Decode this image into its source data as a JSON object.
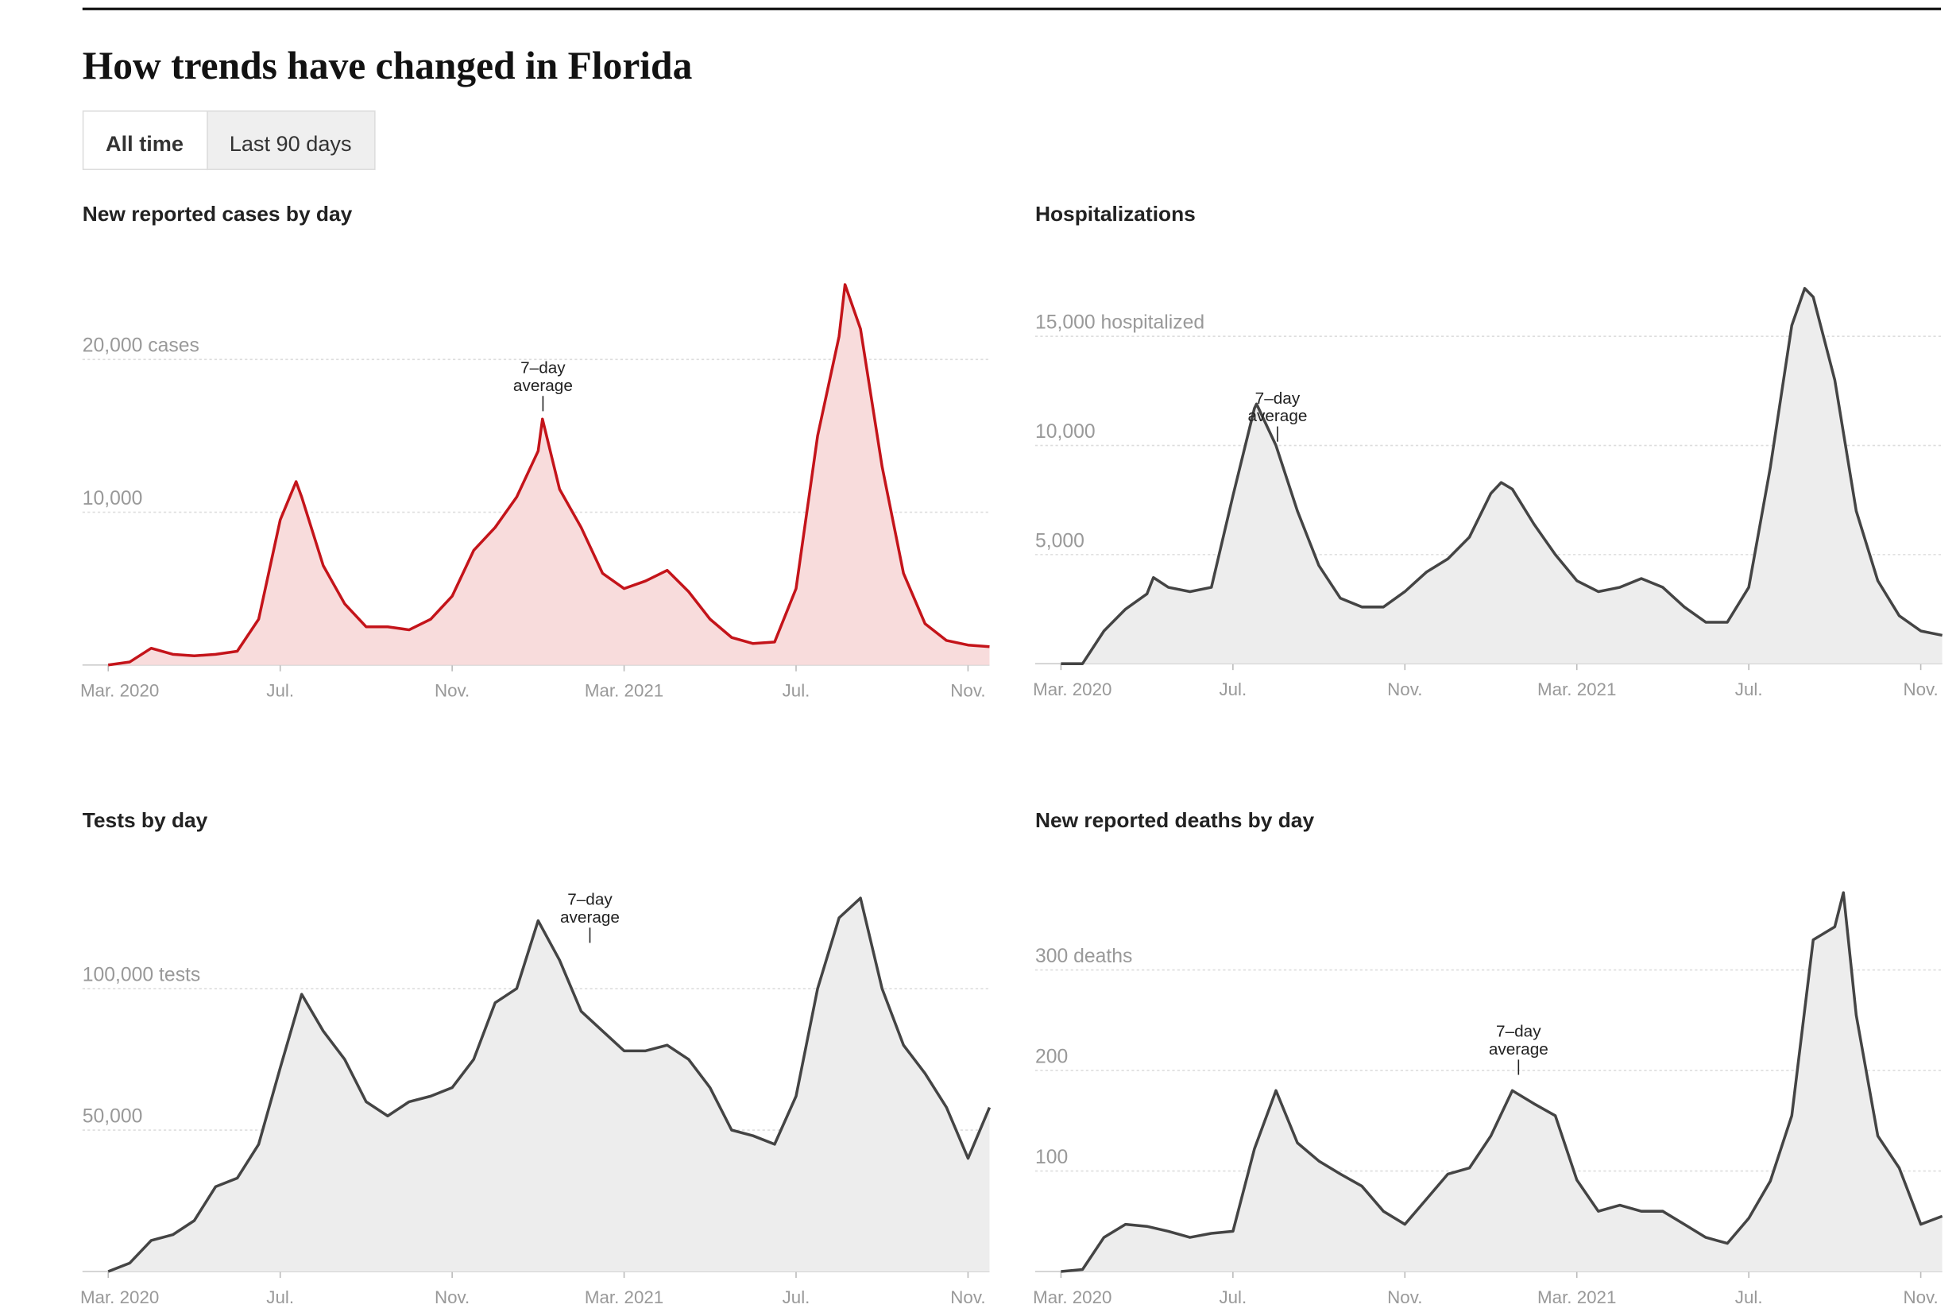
{
  "header": {
    "title": "How trends have changed in Florida",
    "tabs": [
      "All time",
      "Last 90 days"
    ]
  },
  "chart_data": [
    {
      "type": "area",
      "title": "New reported cases by day",
      "annotation": [
        "7–day",
        "average"
      ],
      "color": "#c4141a",
      "fill": "#f8dcdc",
      "x": [
        0,
        0.5,
        1,
        1.5,
        2,
        2.5,
        3,
        3.5,
        4,
        4.37,
        4.5,
        5,
        5.5,
        6,
        6.5,
        7,
        7.5,
        8,
        8.5,
        9,
        9.5,
        10,
        10.1,
        10.5,
        11,
        11.5,
        12,
        12.5,
        13,
        13.5,
        14,
        14.5,
        15,
        15.5,
        16,
        16.5,
        17,
        17.14,
        17.5,
        18,
        18.5,
        19,
        19.5,
        20,
        20.5
      ],
      "series": [
        {
          "name": "Cases",
          "values": [
            0,
            200,
            1100,
            700,
            600,
            700,
            900,
            3000,
            9500,
            12000,
            11000,
            6500,
            4000,
            2500,
            2500,
            2300,
            3000,
            4500,
            7500,
            9000,
            11000,
            14000,
            16100,
            11500,
            9000,
            6000,
            5000,
            5500,
            6200,
            4800,
            3000,
            1800,
            1400,
            1500,
            5000,
            15000,
            21500,
            24900,
            22000,
            13000,
            6000,
            2700,
            1600,
            1300,
            1200
          ]
        }
      ],
      "xlim": [
        -0.6,
        20.5
      ],
      "ylim": [
        0,
        25000
      ],
      "xticks": [
        {
          "value": 0,
          "label": "Mar. 2020"
        },
        {
          "value": 4,
          "label": "Jul."
        },
        {
          "value": 8,
          "label": "Nov."
        },
        {
          "value": 12,
          "label": "Mar. 2021"
        },
        {
          "value": 16,
          "label": "Jul."
        },
        {
          "value": 20,
          "label": "Nov."
        }
      ],
      "yticks": [
        {
          "value": 10000,
          "label": "10,000"
        },
        {
          "value": 20000,
          "label": "20,000 cases"
        }
      ],
      "grid": true
    },
    {
      "type": "area",
      "title": "Hospitalizations",
      "annotation": [
        "7–day",
        "average"
      ],
      "color": "#444444",
      "fill": "#ededed",
      "x": [
        0,
        0.5,
        1,
        1.5,
        2,
        2.15,
        2.5,
        3,
        3.5,
        4,
        4.5,
        4.55,
        5,
        5.5,
        6,
        6.5,
        7,
        7.5,
        8,
        8.5,
        9,
        9.5,
        10,
        10.24,
        10.5,
        11,
        11.5,
        12,
        12.5,
        13,
        13.5,
        14,
        14.5,
        15,
        15.5,
        16,
        16.5,
        17,
        17.3,
        17.5,
        18,
        18.5,
        19,
        19.5,
        20,
        20.5
      ],
      "series": [
        {
          "name": "Hospitalized",
          "values": [
            0,
            0,
            1500,
            2500,
            3200,
            3950,
            3500,
            3300,
            3500,
            7700,
            11700,
            11900,
            10000,
            7000,
            4500,
            3000,
            2600,
            2600,
            3300,
            4200,
            4800,
            5800,
            7800,
            8300,
            8000,
            6400,
            5000,
            3800,
            3300,
            3500,
            3900,
            3500,
            2600,
            1900,
            1900,
            3500,
            9000,
            15500,
            17200,
            16800,
            13000,
            7000,
            3800,
            2200,
            1500,
            1300
          ]
        }
      ],
      "xlim": [
        -0.6,
        20.5
      ],
      "ylim": [
        0,
        17500
      ],
      "xticks": [
        {
          "value": 0,
          "label": "Mar. 2020"
        },
        {
          "value": 4,
          "label": "Jul."
        },
        {
          "value": 8,
          "label": "Nov."
        },
        {
          "value": 12,
          "label": "Mar. 2021"
        },
        {
          "value": 16,
          "label": "Jul."
        },
        {
          "value": 20,
          "label": "Nov."
        }
      ],
      "yticks": [
        {
          "value": 5000,
          "label": "5,000"
        },
        {
          "value": 10000,
          "label": "10,000"
        },
        {
          "value": 15000,
          "label": "15,000 hospitalized"
        }
      ],
      "grid": true
    },
    {
      "type": "area",
      "title": "Tests by day",
      "annotation": [
        "7–day",
        "average"
      ],
      "color": "#444444",
      "fill": "#ededed",
      "x": [
        0,
        0.5,
        1,
        1.5,
        2,
        2.5,
        3,
        3.5,
        4,
        4.5,
        5,
        5.5,
        6,
        6.5,
        7,
        7.5,
        8,
        8.5,
        9,
        9.5,
        10,
        10.5,
        11,
        11.5,
        12,
        12.5,
        13,
        13.5,
        14,
        14.5,
        15,
        15.5,
        16,
        16.5,
        17,
        17.5,
        18,
        18.5,
        19,
        19.5,
        20,
        20.5
      ],
      "series": [
        {
          "name": "Tests",
          "values": [
            0,
            3000,
            11000,
            13000,
            18000,
            30000,
            33000,
            45000,
            72000,
            98000,
            85000,
            75000,
            60000,
            55000,
            60000,
            62000,
            65000,
            75000,
            95000,
            100000,
            124000,
            110000,
            92000,
            85000,
            78000,
            78000,
            80000,
            75000,
            65000,
            50000,
            48000,
            45000,
            62000,
            100000,
            125000,
            132000,
            100000,
            80000,
            70000,
            58000,
            40000,
            58000
          ]
        }
      ],
      "xlim": [
        -0.6,
        20.5
      ],
      "ylim": [
        0,
        135000
      ],
      "xticks": [
        {
          "value": 0,
          "label": "Mar. 2020"
        },
        {
          "value": 4,
          "label": "Jul."
        },
        {
          "value": 8,
          "label": "Nov."
        },
        {
          "value": 12,
          "label": "Mar. 2021"
        },
        {
          "value": 16,
          "label": "Jul."
        },
        {
          "value": 20,
          "label": "Nov."
        }
      ],
      "yticks": [
        {
          "value": 50000,
          "label": "50,000"
        },
        {
          "value": 100000,
          "label": "100,000 tests"
        }
      ],
      "grid": true
    },
    {
      "type": "area",
      "title": "New reported deaths by day",
      "annotation": [
        "7–day",
        "average"
      ],
      "color": "#444444",
      "fill": "#ededed",
      "x": [
        0,
        0.5,
        1,
        1.5,
        2,
        2.5,
        3,
        3.5,
        4,
        4.5,
        5,
        5.5,
        6,
        6.5,
        7,
        7.5,
        8,
        8.5,
        9,
        9.5,
        10,
        10.5,
        11,
        11.5,
        12,
        12.5,
        13,
        13.5,
        14,
        14.5,
        15,
        15.5,
        16,
        16.5,
        17,
        17.5,
        18,
        18.2,
        18.5,
        19,
        19.5,
        20,
        20.5
      ],
      "series": [
        {
          "name": "Deaths",
          "values": [
            0,
            2,
            34,
            47,
            45,
            40,
            34,
            38,
            40,
            122,
            180,
            128,
            110,
            97,
            85,
            60,
            47,
            72,
            97,
            103,
            135,
            180,
            167,
            155,
            91,
            60,
            66,
            60,
            60,
            47,
            34,
            28,
            53,
            90,
            155,
            330,
            343,
            377,
            255,
            135,
            103,
            47,
            55
          ]
        }
      ],
      "xlim": [
        -0.6,
        20.5
      ],
      "ylim": [
        0,
        380
      ],
      "xticks": [
        {
          "value": 0,
          "label": "Mar. 2020"
        },
        {
          "value": 4,
          "label": "Jul."
        },
        {
          "value": 8,
          "label": "Nov."
        },
        {
          "value": 12,
          "label": "Mar. 2021"
        },
        {
          "value": 16,
          "label": "Jul."
        },
        {
          "value": 20,
          "label": "Nov."
        }
      ],
      "yticks": [
        {
          "value": 100,
          "label": "100"
        },
        {
          "value": 200,
          "label": "200"
        },
        {
          "value": 300,
          "label": "300 deaths"
        }
      ],
      "grid": true
    }
  ]
}
